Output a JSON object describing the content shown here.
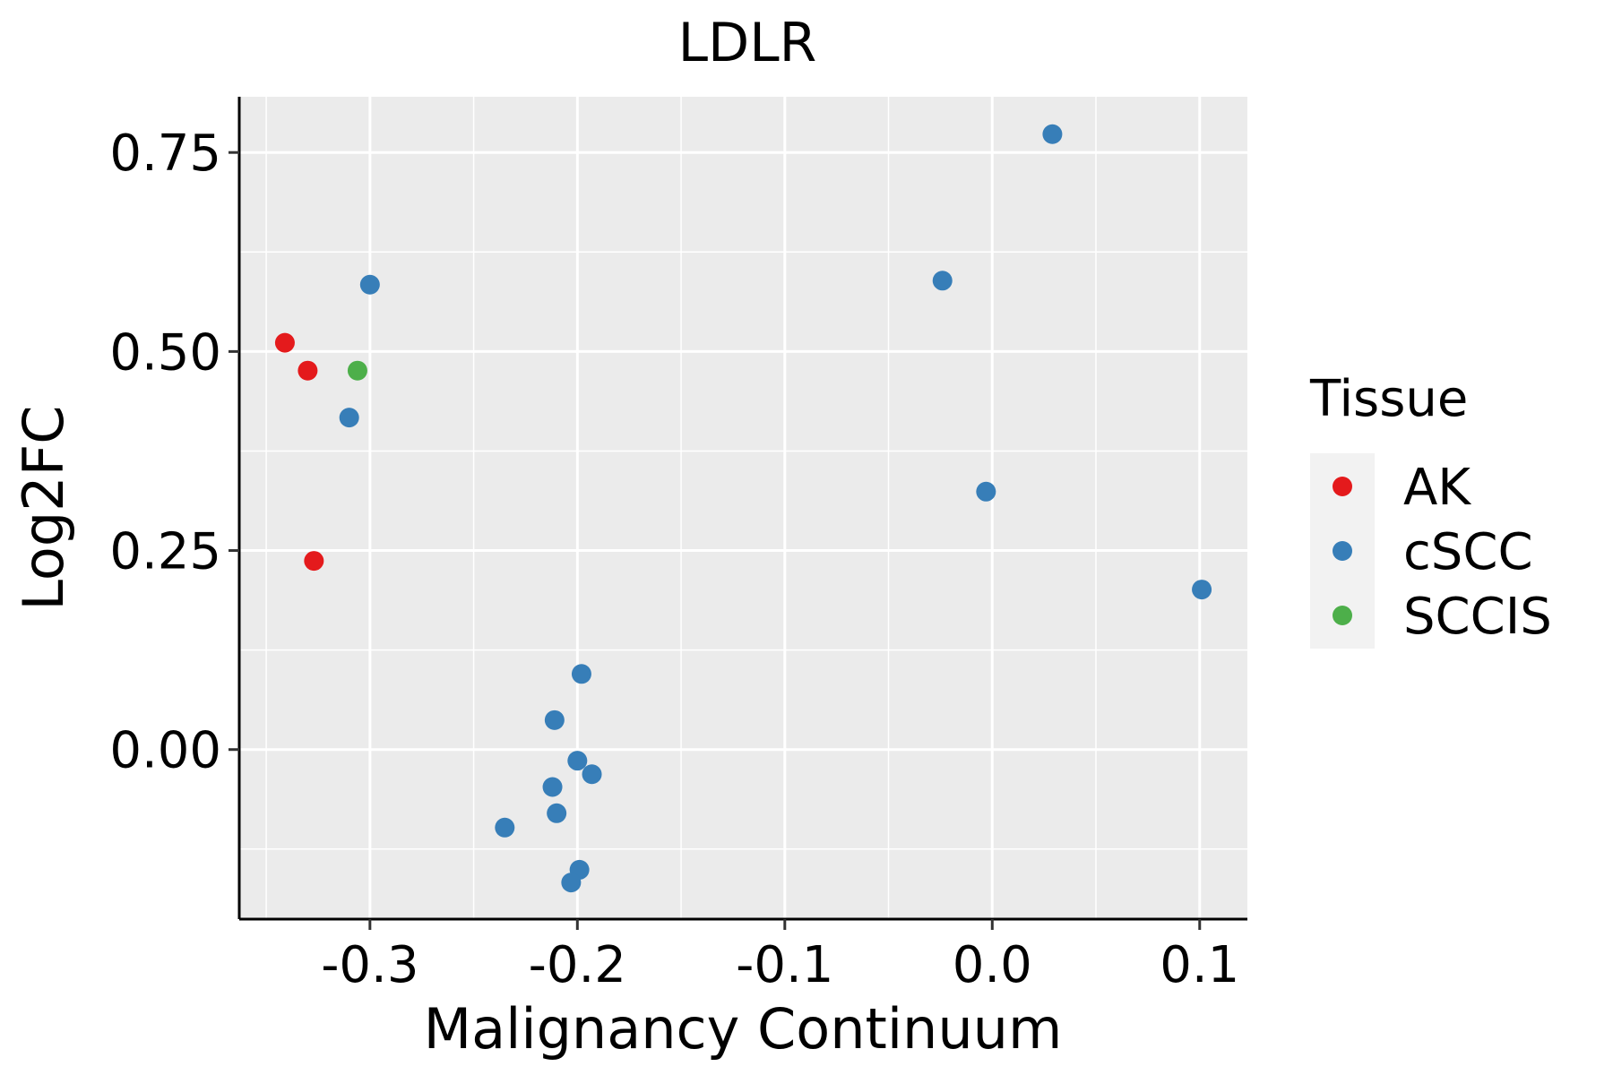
{
  "chart_data": {
    "type": "scatter",
    "title": "LDLR",
    "xlabel": "Malignancy Continuum",
    "ylabel": "Log2FC",
    "xlim": [
      -0.363,
      0.123
    ],
    "ylim": [
      -0.213,
      0.82
    ],
    "x_ticks": [
      -0.3,
      -0.2,
      -0.1,
      0.0,
      0.1
    ],
    "x_tick_labels": [
      "-0.3",
      "-0.2",
      "-0.1",
      "0.0",
      "0.1"
    ],
    "y_ticks": [
      0.0,
      0.25,
      0.5,
      0.75
    ],
    "y_tick_labels": [
      "0.00",
      "0.25",
      "0.50",
      "0.75"
    ],
    "grid": true,
    "legend": {
      "title": "Tissue",
      "position": "right",
      "entries": [
        {
          "label": "AK",
          "color": "#E41A1C"
        },
        {
          "label": "cSCC",
          "color": "#377EB8"
        },
        {
          "label": "SCCIS",
          "color": "#4DAF4A"
        }
      ]
    },
    "series": [
      {
        "name": "AK",
        "color": "#E41A1C",
        "points": [
          {
            "x": -0.341,
            "y": 0.511
          },
          {
            "x": -0.33,
            "y": 0.476
          },
          {
            "x": -0.327,
            "y": 0.237
          }
        ]
      },
      {
        "name": "cSCC",
        "color": "#377EB8",
        "points": [
          {
            "x": 0.029,
            "y": 0.773
          },
          {
            "x": -0.3,
            "y": 0.584
          },
          {
            "x": -0.024,
            "y": 0.589
          },
          {
            "x": -0.31,
            "y": 0.417
          },
          {
            "x": -0.003,
            "y": 0.324
          },
          {
            "x": 0.101,
            "y": 0.201
          },
          {
            "x": -0.198,
            "y": 0.095
          },
          {
            "x": -0.211,
            "y": 0.037
          },
          {
            "x": -0.2,
            "y": -0.014
          },
          {
            "x": -0.193,
            "y": -0.031
          },
          {
            "x": -0.212,
            "y": -0.047
          },
          {
            "x": -0.21,
            "y": -0.08
          },
          {
            "x": -0.235,
            "y": -0.098
          },
          {
            "x": -0.199,
            "y": -0.151
          },
          {
            "x": -0.203,
            "y": -0.167
          }
        ]
      },
      {
        "name": "SCCIS",
        "color": "#4DAF4A",
        "points": [
          {
            "x": -0.306,
            "y": 0.476
          }
        ]
      }
    ]
  }
}
